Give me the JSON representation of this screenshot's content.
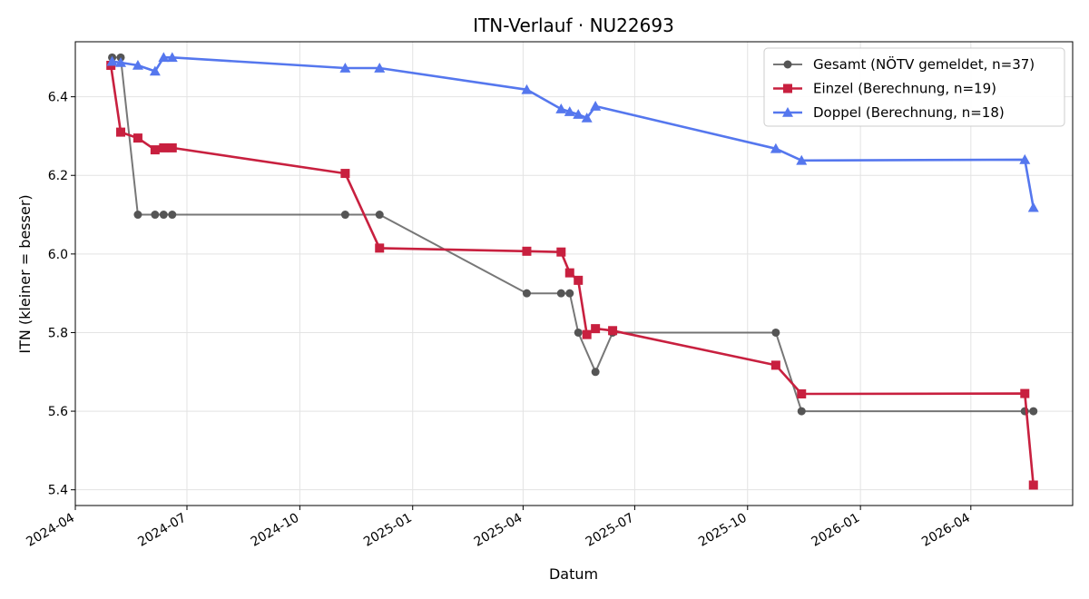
{
  "chart_data": {
    "type": "line",
    "title": "ITN-Verlauf · NU22693",
    "xlabel": "Datum",
    "ylabel": "ITN  (kleiner = besser)",
    "xlim": [
      "2024-04-01",
      "2026-06-23"
    ],
    "ylim": [
      5.36,
      6.54
    ],
    "x_ticks": [
      "2024-04",
      "2024-07",
      "2024-10",
      "2025-01",
      "2025-04",
      "2025-07",
      "2025-10",
      "2026-01",
      "2026-04"
    ],
    "y_ticks": [
      5.4,
      5.6,
      5.8,
      6.0,
      6.2,
      6.4
    ],
    "grid": true,
    "legend_position": "upper right",
    "series": [
      {
        "name": "Gesamt (NÖTV gemeldet, n=37)",
        "color": "#555555",
        "marker": "circle",
        "points": [
          [
            "2024-05-01",
            6.5
          ],
          [
            "2024-05-08",
            6.5
          ],
          [
            "2024-05-22",
            6.1
          ],
          [
            "2024-06-05",
            6.1
          ],
          [
            "2024-06-12",
            6.1
          ],
          [
            "2024-06-19",
            6.1
          ],
          [
            "2024-11-07",
            6.1
          ],
          [
            "2024-12-05",
            6.1
          ],
          [
            "2025-04-04",
            5.9
          ],
          [
            "2025-05-02",
            5.9
          ],
          [
            "2025-05-09",
            5.9
          ],
          [
            "2025-05-16",
            5.8
          ],
          [
            "2025-05-30",
            5.7
          ],
          [
            "2025-06-13",
            5.8
          ],
          [
            "2025-10-24",
            5.8
          ],
          [
            "2025-11-14",
            5.6
          ],
          [
            "2026-05-15",
            5.6
          ],
          [
            "2026-05-22",
            5.6
          ]
        ]
      },
      {
        "name": "Einzel (Berechnung, n=19)",
        "color": "#c8203f",
        "marker": "square",
        "points": [
          [
            "2024-04-30",
            6.48
          ],
          [
            "2024-05-08",
            6.31
          ],
          [
            "2024-05-22",
            6.295
          ],
          [
            "2024-06-05",
            6.265
          ],
          [
            "2024-06-12",
            6.27
          ],
          [
            "2024-06-19",
            6.27
          ],
          [
            "2024-11-07",
            6.205
          ],
          [
            "2024-12-05",
            6.015
          ],
          [
            "2025-04-04",
            6.007
          ],
          [
            "2025-05-02",
            6.005
          ],
          [
            "2025-05-09",
            5.952
          ],
          [
            "2025-05-16",
            5.933
          ],
          [
            "2025-05-23",
            5.795
          ],
          [
            "2025-05-30",
            5.81
          ],
          [
            "2025-06-13",
            5.805
          ],
          [
            "2025-10-24",
            5.717
          ],
          [
            "2025-11-14",
            5.644
          ],
          [
            "2026-05-15",
            5.645
          ],
          [
            "2026-05-22",
            5.412
          ]
        ]
      },
      {
        "name": "Doppel (Berechnung, n=18)",
        "color": "#5577ee",
        "marker": "triangle",
        "points": [
          [
            "2024-05-01",
            6.49
          ],
          [
            "2024-05-08",
            6.487
          ],
          [
            "2024-05-22",
            6.48
          ],
          [
            "2024-06-05",
            6.465
          ],
          [
            "2024-06-12",
            6.5
          ],
          [
            "2024-06-19",
            6.5
          ],
          [
            "2024-11-07",
            6.473
          ],
          [
            "2024-12-05",
            6.473
          ],
          [
            "2025-04-04",
            6.418
          ],
          [
            "2025-05-02",
            6.369
          ],
          [
            "2025-05-09",
            6.362
          ],
          [
            "2025-05-16",
            6.355
          ],
          [
            "2025-05-23",
            6.346
          ],
          [
            "2025-05-30",
            6.376
          ],
          [
            "2025-10-24",
            6.268
          ],
          [
            "2025-11-14",
            6.238
          ],
          [
            "2026-05-15",
            6.24
          ],
          [
            "2026-05-22",
            6.118
          ]
        ]
      }
    ]
  }
}
